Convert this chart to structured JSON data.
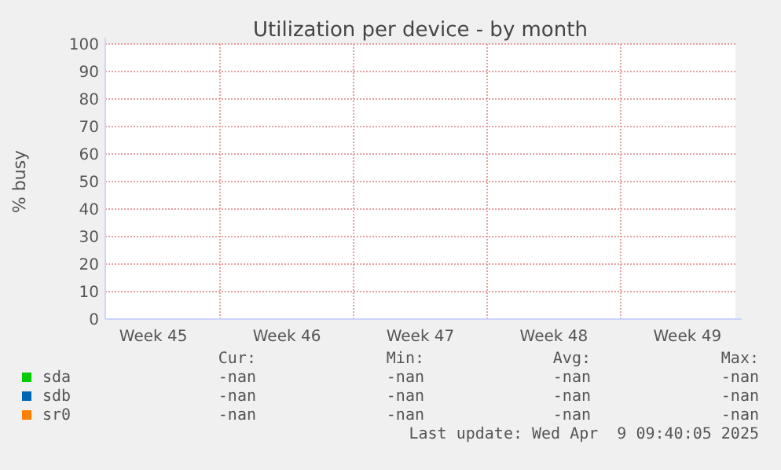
{
  "chart_data": {
    "type": "line",
    "title": "Utilization per device - by month",
    "ylabel": "% busy",
    "categories": [
      "Week 45",
      "Week 46",
      "Week 47",
      "Week 48",
      "Week 49"
    ],
    "ylim": [
      0,
      100
    ],
    "yticks": [
      0,
      10,
      20,
      30,
      40,
      50,
      60,
      70,
      80,
      90,
      100
    ],
    "grid": true,
    "legend": "bottom",
    "series": [
      {
        "name": "sda",
        "color": "#00cc00",
        "values": [
          null,
          null,
          null,
          null,
          null
        ]
      },
      {
        "name": "sdb",
        "color": "#0066b3",
        "values": [
          null,
          null,
          null,
          null,
          null
        ]
      },
      {
        "name": "sr0",
        "color": "#ff8000",
        "values": [
          null,
          null,
          null,
          null,
          null
        ]
      }
    ],
    "annotations": [
      "Cur:",
      "Min:",
      "Avg:",
      "Max:",
      "-nan",
      "-nan",
      "-nan",
      "-nan",
      "-nan",
      "-nan",
      "-nan",
      "-nan",
      "-nan",
      "-nan",
      "-nan",
      "-nan",
      "Last update: Wed Apr  9 09:40:05 2025"
    ]
  }
}
